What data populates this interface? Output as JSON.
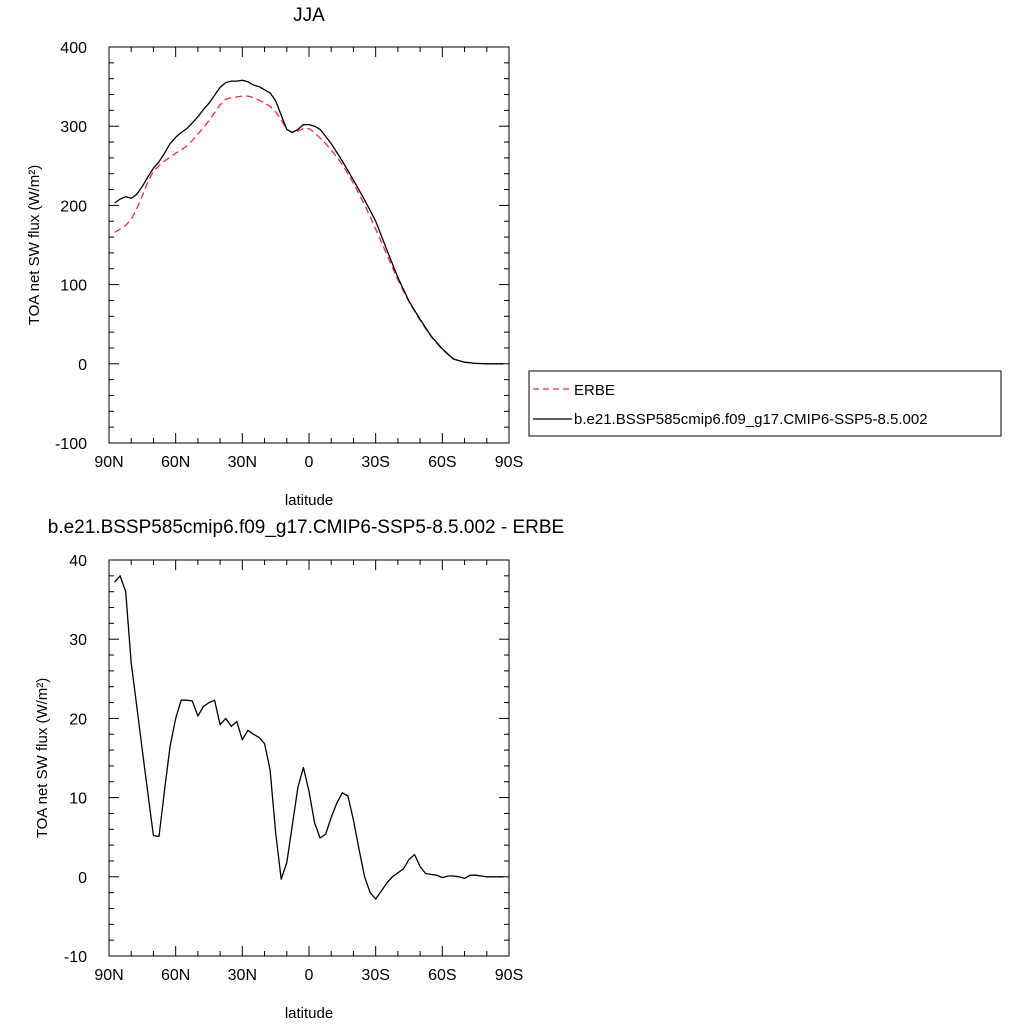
{
  "chart_data": [
    {
      "type": "line",
      "title": "JJA",
      "xlabel": "latitude",
      "ylabel": "TOA net SW flux (W/m²)",
      "xlim": [
        90,
        -90
      ],
      "ylim": [
        -100,
        400
      ],
      "xticks": [
        90,
        60,
        30,
        0,
        -30,
        -60,
        -90
      ],
      "xtick_labels": [
        "90N",
        "60N",
        "30N",
        "0",
        "30S",
        "60S",
        "90S"
      ],
      "yticks": [
        -100,
        0,
        100,
        200,
        300,
        400
      ],
      "ytick_labels": [
        "-100",
        "0",
        "100",
        "200",
        "300",
        "400"
      ],
      "grid": false,
      "legend": "right",
      "series": [
        {
          "name": "ERBE",
          "color": "#e8303a",
          "dash": "dashed",
          "x": [
            87.5,
            85,
            82.5,
            80,
            77.5,
            75,
            72.5,
            70,
            67.5,
            65,
            62.5,
            60,
            57.5,
            55,
            52.5,
            50,
            47.5,
            45,
            42.5,
            40,
            37.5,
            35,
            32.5,
            30,
            27.5,
            25,
            22.5,
            20,
            17.5,
            15,
            12.5,
            10,
            7.5,
            5,
            2.5,
            0,
            -2.5,
            -5,
            -7.5,
            -10,
            -15,
            -20,
            -25,
            -30,
            -35,
            -40,
            -45,
            -50,
            -55,
            -60,
            -65,
            -70,
            -75,
            -80,
            -85,
            -87.5
          ],
          "y": [
            166,
            170,
            175,
            182,
            196,
            212,
            230,
            243,
            250,
            256,
            261,
            266,
            270,
            275,
            282,
            290,
            298,
            307,
            317,
            327,
            334,
            336,
            337,
            338,
            338,
            336,
            333,
            329,
            325,
            318,
            308,
            296,
            292,
            294,
            297,
            297,
            292,
            285,
            278,
            270,
            252,
            228,
            201,
            170,
            138,
            106,
            78,
            55,
            34,
            18,
            6,
            2,
            0.5,
            0,
            0,
            0
          ]
        },
        {
          "name": "b.e21.BSSP585cmip6.f09_g17.CMIP6-SSP5-8.5.002",
          "color": "#000000",
          "dash": "solid",
          "x": [
            87.5,
            85,
            82.5,
            80,
            77.5,
            75,
            72.5,
            70,
            67.5,
            65,
            62.5,
            60,
            57.5,
            55,
            52.5,
            50,
            47.5,
            45,
            42.5,
            40,
            37.5,
            35,
            32.5,
            30,
            27.5,
            25,
            22.5,
            20,
            17.5,
            15,
            12.5,
            10,
            7.5,
            5,
            2.5,
            0,
            -2.5,
            -5,
            -7.5,
            -10,
            -15,
            -20,
            -25,
            -30,
            -35,
            -40,
            -45,
            -50,
            -55,
            -60,
            -65,
            -70,
            -75,
            -80,
            -85,
            -87.5
          ],
          "y": [
            203,
            208,
            211,
            209,
            214,
            224,
            236,
            247,
            255,
            266,
            278,
            286,
            292,
            297,
            304,
            312,
            321,
            329,
            339,
            349,
            355,
            357,
            357,
            358,
            356,
            352,
            350,
            346,
            342,
            332,
            314,
            296,
            292,
            296,
            302,
            302,
            300,
            296,
            287,
            278,
            256,
            232,
            207,
            180,
            144,
            109,
            79,
            56,
            35,
            19,
            6,
            2,
            0.5,
            0,
            0,
            0
          ]
        }
      ]
    },
    {
      "type": "line",
      "title": "b.e21.BSSP585cmip6.f09_g17.CMIP6-SSP5-8.5.002 - ERBE",
      "xlabel": "latitude",
      "ylabel": "TOA net SW flux (W/m²)",
      "xlim": [
        90,
        -90
      ],
      "ylim": [
        -10,
        40
      ],
      "xticks": [
        90,
        60,
        30,
        0,
        -30,
        -60,
        -90
      ],
      "xtick_labels": [
        "90N",
        "60N",
        "30N",
        "0",
        "30S",
        "60S",
        "90S"
      ],
      "yticks": [
        -10,
        0,
        10,
        20,
        30,
        40
      ],
      "ytick_labels": [
        "-10",
        "0",
        "10",
        "20",
        "30",
        "40"
      ],
      "grid": false,
      "series": [
        {
          "color": "#000000",
          "dash": "solid",
          "x": [
            87.5,
            85,
            82.5,
            80,
            77.5,
            75,
            72.5,
            70,
            67.5,
            65,
            62.5,
            60,
            57.5,
            55,
            52.5,
            50,
            47.5,
            45,
            42.5,
            40,
            37.5,
            35,
            32.5,
            30,
            27.5,
            25,
            22.5,
            20,
            17.5,
            15,
            12.5,
            10,
            7.5,
            5,
            2.5,
            0,
            -2.5,
            -5,
            -7.5,
            -10,
            -12.5,
            -15,
            -17.5,
            -20,
            -22.5,
            -25,
            -27.5,
            -30,
            -32.5,
            -35,
            -37.5,
            -40,
            -42.5,
            -45,
            -47.5,
            -50,
            -52.5,
            -55,
            -57.5,
            -60,
            -62.5,
            -65,
            -67.5,
            -70,
            -72.5,
            -75,
            -77.5,
            -80,
            -82.5,
            -85,
            -87.5
          ],
          "y": [
            37.2,
            38,
            36,
            27,
            21.5,
            16,
            10.5,
            5.2,
            5.1,
            11,
            16.5,
            20,
            22.3,
            22.3,
            22.2,
            20.3,
            21.5,
            22,
            22.3,
            19.2,
            20,
            19,
            19.6,
            17.3,
            18.5,
            18,
            17.6,
            16.8,
            13.5,
            5.5,
            -0.3,
            1.8,
            6.5,
            11.3,
            13.8,
            10.8,
            6.8,
            4.9,
            5.4,
            7.5,
            9.3,
            10.6,
            10.2,
            7.2,
            3.5,
            0,
            -2,
            -2.8,
            -1.8,
            -0.8,
            0,
            0.5,
            1,
            2.2,
            2.8,
            1.3,
            0.4,
            0.3,
            0.2,
            -0.1,
            0.1,
            0.1,
            0,
            -0.2,
            0.2,
            0.2,
            0.1,
            0,
            0,
            0,
            0
          ]
        }
      ]
    }
  ]
}
